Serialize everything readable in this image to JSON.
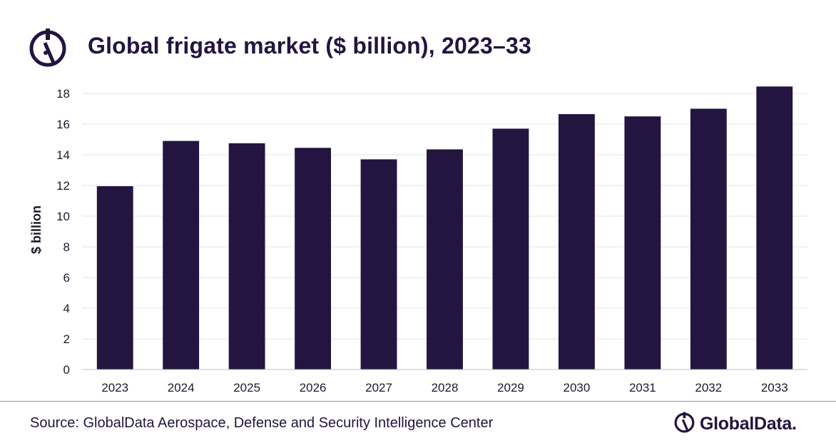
{
  "header": {
    "title": "Global frigate market ($ billion), 2023–33"
  },
  "chart_data": {
    "type": "bar",
    "title": "Global frigate market ($ billion), 2023–33",
    "xlabel": "",
    "ylabel": "$ billion",
    "categories": [
      "2023",
      "2024",
      "2025",
      "2026",
      "2027",
      "2028",
      "2029",
      "2030",
      "2031",
      "2032",
      "2033"
    ],
    "values": [
      11.95,
      14.9,
      14.75,
      14.45,
      13.7,
      14.35,
      15.7,
      16.65,
      16.5,
      17.0,
      18.45
    ],
    "ylim": [
      0,
      18.6
    ],
    "yticks": [
      0,
      2,
      4,
      6,
      8,
      10,
      12,
      14,
      16,
      18
    ],
    "grid": true,
    "legend": "none",
    "bar_color": "#231440",
    "grid_color": "#e3e3e3"
  },
  "footer": {
    "source": "Source: GlobalData Aerospace, Defense and Security Intelligence Center",
    "brand": "GlobalData."
  },
  "colors": {
    "brand": "#231440"
  }
}
